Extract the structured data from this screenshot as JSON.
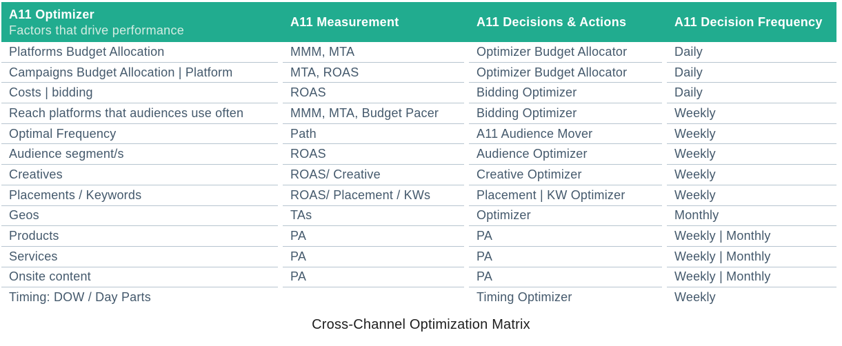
{
  "colors": {
    "header_bg": "#21AC8F",
    "header_text": "#FFFFFF",
    "header_subtitle_text": "#D3ECE2",
    "body_text": "#44596C",
    "row_divider": "#B6C4CF",
    "caption_text": "#1D1D1D",
    "background": "#FFFFFF"
  },
  "table": {
    "columns": [
      {
        "title": "A11 Optimizer",
        "subtitle": "Factors that drive performance"
      },
      {
        "title": "A11 Measurement"
      },
      {
        "title": "A11 Decisions & Actions"
      },
      {
        "title": "A11 Decision Frequency"
      }
    ],
    "rows": [
      [
        "Platforms Budget Allocation",
        "MMM, MTA",
        "Optimizer Budget Allocator",
        "Daily"
      ],
      [
        "Campaigns Budget Allocation | Platform",
        "MTA, ROAS",
        "Optimizer Budget Allocator",
        "Daily"
      ],
      [
        "Costs | bidding",
        "ROAS",
        "Bidding Optimizer",
        "Daily"
      ],
      [
        "Reach platforms that audiences use often",
        "MMM, MTA, Budget Pacer",
        "Bidding Optimizer",
        "Weekly"
      ],
      [
        "Optimal Frequency",
        "Path",
        "A11 Audience Mover",
        "Weekly"
      ],
      [
        "Audience segment/s",
        "ROAS",
        "Audience Optimizer",
        "Weekly"
      ],
      [
        "Creatives",
        "ROAS/ Creative",
        "Creative Optimizer",
        "Weekly"
      ],
      [
        "Placements / Keywords",
        "ROAS/ Placement / KWs",
        "Placement | KW Optimizer",
        "Weekly"
      ],
      [
        "Geos",
        "TAs",
        "Optimizer",
        "Monthly"
      ],
      [
        "Products",
        "PA",
        "PA",
        "Weekly | Monthly"
      ],
      [
        "Services",
        "PA",
        "PA",
        "Weekly | Monthly"
      ],
      [
        "Onsite content",
        "PA",
        "PA",
        "Weekly | Monthly"
      ],
      [
        "Timing: DOW / Day Parts",
        "",
        "Timing Optimizer",
        "Weekly"
      ]
    ]
  },
  "caption": "Cross-Channel Optimization Matrix"
}
